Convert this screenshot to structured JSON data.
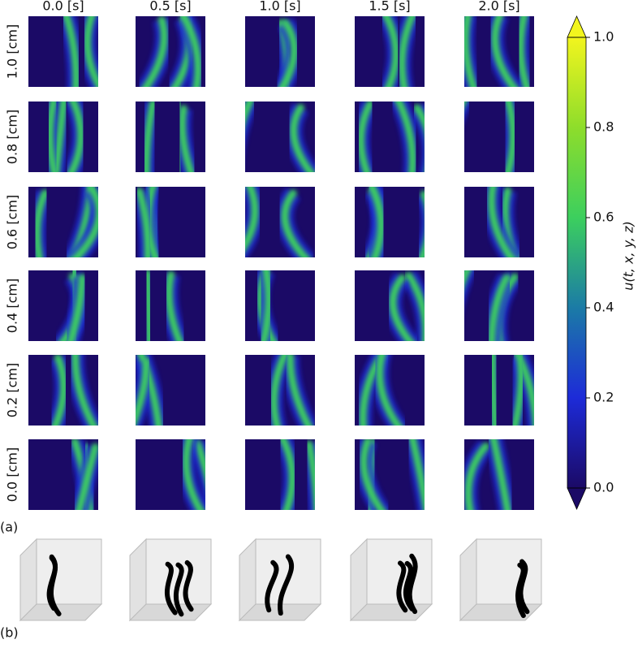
{
  "chart_data": {
    "type": "heatmap",
    "columns": [
      "0.0 [s]",
      "0.5 [s]",
      "1.0 [s]",
      "1.5 [s]",
      "2.0 [s]"
    ],
    "rows": [
      "1.0 [cm]",
      "0.8 [cm]",
      "0.6 [cm]",
      "0.4 [cm]",
      "0.2 [cm]",
      "0.0 [cm]"
    ],
    "colorbar_label": "u(t, x, y, z)",
    "zlim": [
      0,
      1
    ],
    "zticks": [
      {
        "value": 0,
        "label": "0.0"
      },
      0.2,
      0.4,
      0.6,
      0.8,
      {
        "value": 1,
        "label": "1.0"
      }
    ],
    "colorbar_extend": "both",
    "colors": [
      "#1b0a66",
      "#1d2bd8",
      "#1b7ba6",
      "#3ccf5e",
      "#8edd2b",
      "#f2f51e"
    ],
    "panel_labels": [
      "(a)",
      "(b)"
    ]
  }
}
